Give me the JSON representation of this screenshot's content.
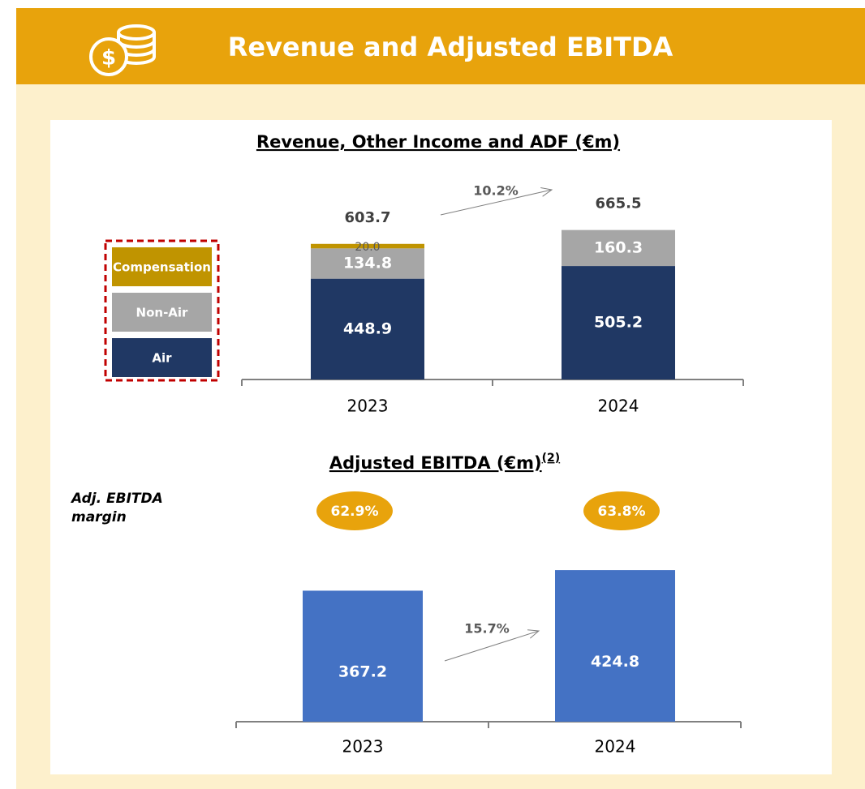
{
  "header": {
    "title": "Revenue and Adjusted EBITDA"
  },
  "chart_data": [
    {
      "type": "stacked_bar",
      "title": "Revenue, Other Income and ADF (€m)",
      "categories": [
        "2023",
        "2024"
      ],
      "series": [
        {
          "name": "Air",
          "color": "#203864",
          "values": [
            448.9,
            505.2
          ]
        },
        {
          "name": "Non-Air",
          "color": "#a6a6a6",
          "values": [
            134.8,
            160.3
          ]
        },
        {
          "name": "Compensation",
          "color": "#c09400",
          "values": [
            20.0,
            null
          ],
          "value_labels": [
            "20.0",
            null
          ]
        }
      ],
      "totals": [
        603.7,
        665.5
      ],
      "growth": "10.2%"
    },
    {
      "type": "bar",
      "title": "Adjusted EBITDA (€m)",
      "title_note": "(2)",
      "categories": [
        "2023",
        "2024"
      ],
      "values": [
        367.2,
        424.8
      ],
      "color": "#4472c4",
      "margin_label": "Adj. EBITDA margin",
      "margins": [
        "62.9%",
        "63.8%"
      ],
      "growth": "15.7%"
    }
  ]
}
